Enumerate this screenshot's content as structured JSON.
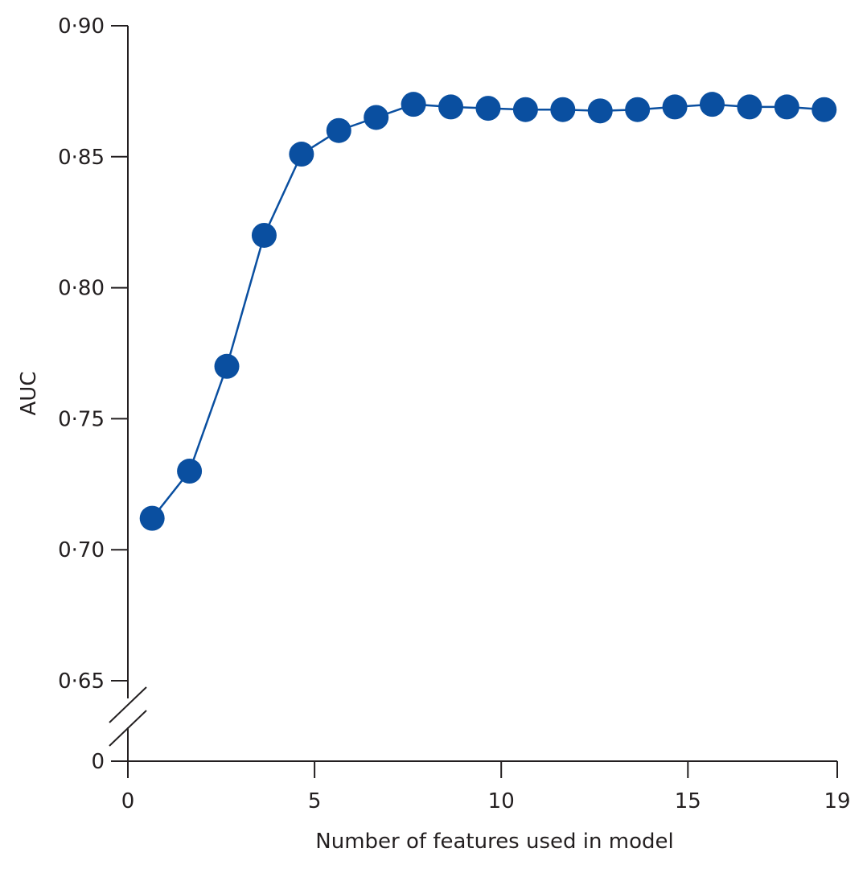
{
  "chart_data": {
    "type": "line",
    "title": "",
    "xlabel": "Number of features used in model",
    "ylabel": "AUC",
    "xlim": [
      0,
      19
    ],
    "ylim": [
      0.65,
      0.9
    ],
    "y_axis_break": true,
    "x_ticks": [
      {
        "value": 0,
        "label": "0"
      },
      {
        "value": 5,
        "label": "5"
      },
      {
        "value": 10,
        "label": "10"
      },
      {
        "value": 15,
        "label": "15"
      },
      {
        "value": 19,
        "label": "19"
      }
    ],
    "y_ticks": [
      {
        "value": 0.65,
        "label": "0·65"
      },
      {
        "value": 0.7,
        "label": "0·70"
      },
      {
        "value": 0.75,
        "label": "0·75"
      },
      {
        "value": 0.8,
        "label": "0·80"
      },
      {
        "value": 0.85,
        "label": "0·85"
      },
      {
        "value": 0.9,
        "label": "0·90"
      }
    ],
    "y_zero_label": "0",
    "grid": false,
    "legend": "none",
    "color": "#0a4fa0",
    "series": [
      {
        "x": [
          0.65,
          1.65,
          2.65,
          3.65,
          4.65,
          5.65,
          6.65,
          7.65,
          8.65,
          9.65,
          10.65,
          11.65,
          12.65,
          13.65,
          14.65,
          15.65,
          16.65,
          17.65,
          18.65
        ],
        "values": [
          0.712,
          0.73,
          0.77,
          0.82,
          0.851,
          0.86,
          0.865,
          0.87,
          0.869,
          0.8685,
          0.868,
          0.868,
          0.8675,
          0.868,
          0.869,
          0.87,
          0.869,
          0.869,
          0.868
        ]
      }
    ]
  }
}
